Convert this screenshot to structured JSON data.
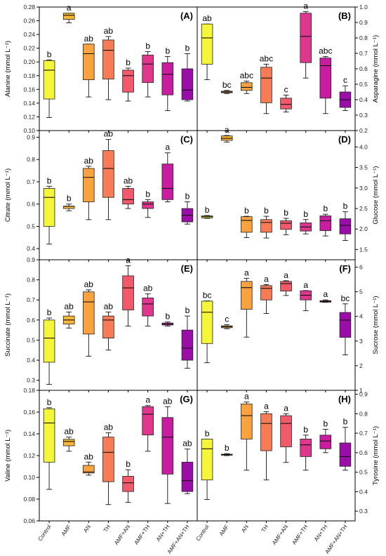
{
  "colors": {
    "Control": "#f5f53a",
    "AMF": "#f9b637",
    "AN": "#f9a23f",
    "TH": "#f77b55",
    "AMF+AN": "#f25a6c",
    "AMF+TH": "#e0378e",
    "AN+TH": "#c91d9f",
    "AMF+AN+TH": "#9b0da9"
  },
  "chart_data": [
    {
      "type": "box",
      "panel": "(A)",
      "side": "left",
      "ylabel": "Alanine (mmol L⁻¹)",
      "ylim": [
        0.1,
        0.28
      ],
      "yticks": [
        "0.10",
        "0.12",
        "0.14",
        "0.16",
        "0.18",
        "0.20",
        "0.22",
        "0.24",
        "0.26",
        "0.28"
      ],
      "categories": [
        "Control",
        "AMF",
        "AN",
        "TH",
        "AMF+AN",
        "AMF+TH",
        "AN+TH",
        "AMF+AN+TH"
      ],
      "boxes": [
        {
          "min": 0.119,
          "q1": 0.146,
          "median": 0.188,
          "q3": 0.202,
          "max": 0.203,
          "letter": "b"
        },
        {
          "min": 0.257,
          "q1": 0.262,
          "median": 0.268,
          "q3": 0.271,
          "max": 0.271,
          "letter": "a"
        },
        {
          "min": 0.149,
          "q1": 0.174,
          "median": 0.212,
          "q3": 0.226,
          "max": 0.226,
          "letter": "ab"
        },
        {
          "min": 0.145,
          "q1": 0.175,
          "median": 0.217,
          "q3": 0.232,
          "max": 0.237,
          "letter": "ab"
        },
        {
          "min": 0.143,
          "q1": 0.156,
          "median": 0.18,
          "q3": 0.188,
          "max": 0.191,
          "letter": "b"
        },
        {
          "min": 0.149,
          "q1": 0.17,
          "median": 0.197,
          "q3": 0.21,
          "max": 0.215,
          "letter": "b"
        },
        {
          "min": 0.129,
          "q1": 0.152,
          "median": 0.182,
          "q3": 0.199,
          "max": 0.208,
          "letter": "b"
        },
        {
          "min": 0.143,
          "q1": 0.145,
          "median": 0.159,
          "q3": 0.19,
          "max": 0.212,
          "letter": "b"
        }
      ]
    },
    {
      "type": "box",
      "panel": "(B)",
      "side": "right",
      "ylabel": "Asparagine (mmol L⁻¹)",
      "ylim": [
        0.2,
        1.0
      ],
      "yticks": [
        "0.2",
        "0.3",
        "0.4",
        "0.5",
        "0.6",
        "0.7",
        "0.8",
        "0.9",
        "1.0"
      ],
      "categories": [
        "Control",
        "AMF",
        "AN",
        "TH",
        "AMF+AN",
        "AMF+TH",
        "AN+TH",
        "AMF+AN+TH"
      ],
      "boxes": [
        {
          "min": 0.53,
          "q1": 0.63,
          "median": 0.8,
          "q3": 0.89,
          "max": 0.89,
          "letter": "ab"
        },
        {
          "min": 0.44,
          "q1": 0.445,
          "median": 0.45,
          "q3": 0.455,
          "max": 0.46,
          "letter": "bc"
        },
        {
          "min": 0.44,
          "q1": 0.46,
          "median": 0.48,
          "q3": 0.51,
          "max": 0.52,
          "letter": "abc"
        },
        {
          "min": 0.31,
          "q1": 0.38,
          "median": 0.54,
          "q3": 0.61,
          "max": 0.63,
          "letter": "abc"
        },
        {
          "min": 0.32,
          "q1": 0.34,
          "median": 0.37,
          "q3": 0.41,
          "max": 0.43,
          "letter": "c"
        },
        {
          "min": 0.54,
          "q1": 0.64,
          "median": 0.81,
          "q3": 0.96,
          "max": 0.97,
          "letter": "a"
        },
        {
          "min": 0.31,
          "q1": 0.41,
          "median": 0.62,
          "q3": 0.67,
          "max": 0.68,
          "letter": "abc"
        },
        {
          "min": 0.33,
          "q1": 0.35,
          "median": 0.4,
          "q3": 0.45,
          "max": 0.49,
          "letter": "c"
        }
      ]
    },
    {
      "type": "box",
      "panel": "(C)",
      "side": "left",
      "ylabel": "Citrate (mmol L⁻¹)",
      "ylim": [
        0.35,
        0.93
      ],
      "yticks": [
        "0.4",
        "0.5",
        "0.6",
        "0.7",
        "0.8",
        "0.9"
      ],
      "categories": [
        "Control",
        "AMF",
        "AN",
        "TH",
        "AMF+AN",
        "AMF+TH",
        "AN+TH",
        "AMF+AN+TH"
      ],
      "boxes": [
        {
          "min": 0.42,
          "q1": 0.5,
          "median": 0.63,
          "q3": 0.67,
          "max": 0.68,
          "letter": "b"
        },
        {
          "min": 0.57,
          "q1": 0.58,
          "median": 0.59,
          "q3": 0.59,
          "max": 0.6,
          "letter": "b"
        },
        {
          "min": 0.53,
          "q1": 0.61,
          "median": 0.72,
          "q3": 0.76,
          "max": 0.77,
          "letter": "ab"
        },
        {
          "min": 0.53,
          "q1": 0.63,
          "median": 0.76,
          "q3": 0.84,
          "max": 0.89,
          "letter": "ab"
        },
        {
          "min": 0.58,
          "q1": 0.6,
          "median": 0.62,
          "q3": 0.67,
          "max": 0.68,
          "letter": "ab"
        },
        {
          "min": 0.54,
          "q1": 0.58,
          "median": 0.6,
          "q3": 0.61,
          "max": 0.62,
          "letter": "b"
        },
        {
          "min": 0.61,
          "q1": 0.62,
          "median": 0.67,
          "q3": 0.78,
          "max": 0.83,
          "letter": "a"
        },
        {
          "min": 0.51,
          "q1": 0.52,
          "median": 0.55,
          "q3": 0.58,
          "max": 0.61,
          "letter": "b"
        }
      ]
    },
    {
      "type": "box",
      "panel": "(D)",
      "side": "right",
      "ylabel": "Glucose (mmol L⁻¹)",
      "ylim": [
        1.25,
        4.4
      ],
      "yticks": [
        "1.5",
        "2.0",
        "2.5",
        "3.0",
        "3.5",
        "4.0"
      ],
      "categories": [
        "Control",
        "AMF",
        "AN",
        "TH",
        "AMF+AN",
        "AMF+TH",
        "AN+TH",
        "AMF+AN+TH"
      ],
      "boxes": [
        {
          "min": 2.26,
          "q1": 2.27,
          "median": 2.3,
          "q3": 2.32,
          "max": 2.33,
          "letter": "b"
        },
        {
          "min": 4.12,
          "q1": 4.16,
          "median": 4.21,
          "q3": 4.27,
          "max": 4.28,
          "letter": "a"
        },
        {
          "min": 1.79,
          "q1": 1.92,
          "median": 2.21,
          "q3": 2.3,
          "max": 2.31,
          "letter": "b"
        },
        {
          "min": 1.78,
          "q1": 1.92,
          "median": 2.16,
          "q3": 2.23,
          "max": 2.31,
          "letter": "b"
        },
        {
          "min": 1.86,
          "q1": 1.99,
          "median": 2.14,
          "q3": 2.2,
          "max": 2.26,
          "letter": "b"
        },
        {
          "min": 1.88,
          "q1": 1.95,
          "median": 2.05,
          "q3": 2.15,
          "max": 2.23,
          "letter": "b"
        },
        {
          "min": 1.83,
          "q1": 1.96,
          "median": 2.2,
          "q3": 2.32,
          "max": 2.36,
          "letter": "b"
        },
        {
          "min": 1.72,
          "q1": 1.88,
          "median": 2.09,
          "q3": 2.25,
          "max": 2.42,
          "letter": "b"
        }
      ]
    },
    {
      "type": "box",
      "panel": "(E)",
      "side": "left",
      "ylabel": "Succinate (mmol L⁻¹)",
      "ylim": [
        0.25,
        0.9
      ],
      "yticks": [
        "0.3",
        "0.4",
        "0.5",
        "0.6",
        "0.7",
        "0.8",
        "0.9"
      ],
      "categories": [
        "Control",
        "AMF",
        "AN",
        "TH",
        "AMF+AN",
        "AMF+TH",
        "AN+TH",
        "AMF+AN+TH"
      ],
      "boxes": [
        {
          "min": 0.28,
          "q1": 0.39,
          "median": 0.51,
          "q3": 0.6,
          "max": 0.61,
          "letter": "b"
        },
        {
          "min": 0.56,
          "q1": 0.58,
          "median": 0.6,
          "q3": 0.62,
          "max": 0.64,
          "letter": "ab"
        },
        {
          "min": 0.42,
          "q1": 0.53,
          "median": 0.69,
          "q3": 0.74,
          "max": 0.75,
          "letter": "ab"
        },
        {
          "min": 0.45,
          "q1": 0.51,
          "median": 0.6,
          "q3": 0.62,
          "max": 0.64,
          "letter": "ab"
        },
        {
          "min": 0.57,
          "q1": 0.65,
          "median": 0.76,
          "q3": 0.82,
          "max": 0.87,
          "letter": "a"
        },
        {
          "min": 0.57,
          "q1": 0.62,
          "median": 0.68,
          "q3": 0.71,
          "max": 0.73,
          "letter": "ab"
        },
        {
          "min": 0.57,
          "q1": 0.575,
          "median": 0.58,
          "q3": 0.585,
          "max": 0.59,
          "letter": "b"
        },
        {
          "min": 0.36,
          "q1": 0.4,
          "median": 0.46,
          "q3": 0.55,
          "max": 0.62,
          "letter": "b"
        }
      ]
    },
    {
      "type": "box",
      "panel": "(F)",
      "side": "right",
      "ylabel": "Sucrose (mmol L⁻¹)",
      "ylim": [
        1,
        6.3
      ],
      "yticks": [
        "1",
        "2",
        "3",
        "4",
        "5",
        "6"
      ],
      "categories": [
        "Control",
        "AMF",
        "AN",
        "TH",
        "AMF+AN",
        "AMF+TH",
        "AN+TH",
        "AMF+AN+TH"
      ],
      "boxes": [
        {
          "min": 2.12,
          "q1": 2.9,
          "median": 4.17,
          "q3": 4.62,
          "max": 4.63,
          "letter": "bc"
        },
        {
          "min": 3.5,
          "q1": 3.54,
          "median": 3.58,
          "q3": 3.62,
          "max": 3.66,
          "letter": "c"
        },
        {
          "min": 3.16,
          "q1": 4.29,
          "median": 5.17,
          "q3": 5.42,
          "max": 5.55,
          "letter": "a"
        },
        {
          "min": 4.12,
          "q1": 4.67,
          "median": 5.14,
          "q3": 5.25,
          "max": 5.29,
          "letter": "a"
        },
        {
          "min": 4.85,
          "q1": 5.03,
          "median": 5.33,
          "q3": 5.42,
          "max": 5.45,
          "letter": "a"
        },
        {
          "min": 4.23,
          "q1": 4.67,
          "median": 4.86,
          "q3": 5.04,
          "max": 5.05,
          "letter": "a"
        },
        {
          "min": 4.57,
          "q1": 4.58,
          "median": 4.61,
          "q3": 4.64,
          "max": 4.67,
          "letter": "a"
        },
        {
          "min": 2.44,
          "q1": 3.15,
          "median": 3.85,
          "q3": 4.16,
          "max": 4.51,
          "letter": "bc"
        }
      ]
    },
    {
      "type": "box",
      "panel": "(G)",
      "side": "left",
      "ylabel": "Valine (mmol L⁻¹)",
      "ylim": [
        0.06,
        0.18
      ],
      "yticks": [
        "0.06",
        "0.08",
        "0.10",
        "0.12",
        "0.14",
        "0.16",
        "0.18"
      ],
      "categories": [
        "Control",
        "AMF",
        "AN",
        "TH",
        "AMF+AN",
        "AMF+TH",
        "AN+TH",
        "AMF+AN+TH"
      ],
      "boxes": [
        {
          "min": 0.089,
          "q1": 0.114,
          "median": 0.15,
          "q3": 0.163,
          "max": 0.164,
          "letter": "b"
        },
        {
          "min": 0.124,
          "q1": 0.129,
          "median": 0.133,
          "q3": 0.135,
          "max": 0.137,
          "letter": "ab"
        },
        {
          "min": 0.102,
          "q1": 0.104,
          "median": 0.105,
          "q3": 0.111,
          "max": 0.114,
          "letter": "ab"
        },
        {
          "min": 0.075,
          "q1": 0.096,
          "median": 0.123,
          "q3": 0.137,
          "max": 0.141,
          "letter": "ab"
        },
        {
          "min": 0.077,
          "q1": 0.087,
          "median": 0.095,
          "q3": 0.101,
          "max": 0.107,
          "letter": "b"
        },
        {
          "min": 0.124,
          "q1": 0.139,
          "median": 0.158,
          "q3": 0.165,
          "max": 0.166,
          "letter": "a"
        },
        {
          "min": 0.076,
          "q1": 0.103,
          "median": 0.137,
          "q3": 0.155,
          "max": 0.165,
          "letter": "ab"
        },
        {
          "min": 0.085,
          "q1": 0.087,
          "median": 0.097,
          "q3": 0.114,
          "max": 0.126,
          "letter": "ab"
        }
      ]
    },
    {
      "type": "box",
      "panel": "(H)",
      "side": "right",
      "ylabel": "Tyrosine (mmol L⁻¹)",
      "ylim": [
        0.25,
        0.92
      ],
      "yticks": [
        "0.3",
        "0.4",
        "0.5",
        "0.6",
        "0.7",
        "0.8",
        "0.9"
      ],
      "categories": [
        "Control",
        "AMF",
        "AN",
        "TH",
        "AMF+AN",
        "AMF+TH",
        "AN+TH",
        "AMF+AN+TH"
      ],
      "boxes": [
        {
          "min": 0.36,
          "q1": 0.46,
          "median": 0.62,
          "q3": 0.67,
          "max": 0.67,
          "letter": "b"
        },
        {
          "min": 0.585,
          "q1": 0.587,
          "median": 0.59,
          "q3": 0.592,
          "max": 0.595,
          "letter": "b"
        },
        {
          "min": 0.51,
          "q1": 0.67,
          "median": 0.79,
          "q3": 0.85,
          "max": 0.86,
          "letter": "a"
        },
        {
          "min": 0.46,
          "q1": 0.61,
          "median": 0.75,
          "q3": 0.8,
          "max": 0.81,
          "letter": "a"
        },
        {
          "min": 0.55,
          "q1": 0.63,
          "median": 0.75,
          "q3": 0.79,
          "max": 0.8,
          "letter": "a"
        },
        {
          "min": 0.51,
          "q1": 0.58,
          "median": 0.64,
          "q3": 0.67,
          "max": 0.69,
          "letter": "b"
        },
        {
          "min": 0.6,
          "q1": 0.62,
          "median": 0.66,
          "q3": 0.69,
          "max": 0.72,
          "letter": "b"
        },
        {
          "min": 0.51,
          "q1": 0.53,
          "median": 0.58,
          "q3": 0.65,
          "max": 0.73,
          "letter": "b"
        }
      ]
    }
  ]
}
